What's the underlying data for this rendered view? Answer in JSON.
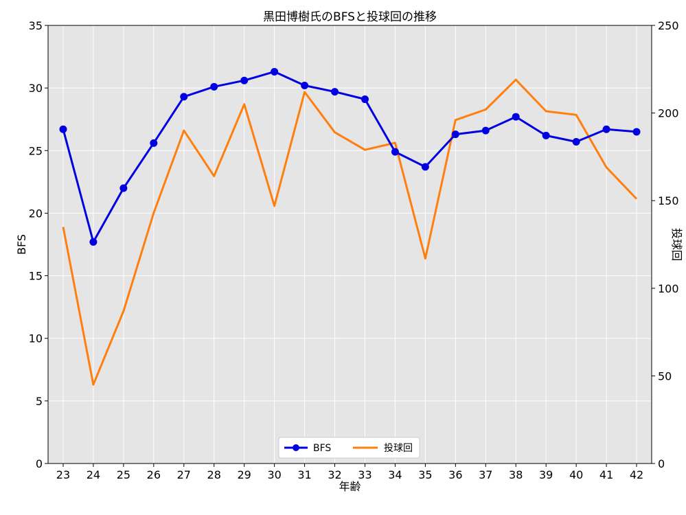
{
  "chart_data": {
    "type": "line",
    "title": "黒田博樹氏のBFSと投球回の推移",
    "xlabel": "年齢",
    "ylabel": "BFS",
    "y2label": "投球回",
    "categories": [
      "23",
      "24",
      "25",
      "26",
      "27",
      "28",
      "29",
      "30",
      "31",
      "32",
      "33",
      "34",
      "35",
      "36",
      "37",
      "38",
      "39",
      "40",
      "41",
      "42"
    ],
    "series": [
      {
        "name": "BFS",
        "axis": "left",
        "color": "#0000e0",
        "marker": "circle",
        "values": [
          26.7,
          17.7,
          22.0,
          25.6,
          29.3,
          30.1,
          30.6,
          31.3,
          30.2,
          29.7,
          29.1,
          24.9,
          23.7,
          26.3,
          26.6,
          27.7,
          26.2,
          25.7,
          26.7,
          26.5
        ]
      },
      {
        "name": "投球回",
        "axis": "right",
        "color": "#ff7f0e",
        "marker": "none",
        "values": [
          135,
          45,
          87,
          143,
          190,
          164,
          205,
          147,
          212,
          189,
          179,
          183,
          117,
          196,
          202,
          219,
          201,
          199,
          169,
          151
        ]
      }
    ],
    "ylim": [
      0,
      35
    ],
    "yticks": [
      0,
      5,
      10,
      15,
      20,
      25,
      30,
      35
    ],
    "y2lim": [
      0,
      250
    ],
    "y2ticks": [
      0,
      50,
      100,
      150,
      200,
      250
    ],
    "grid": true,
    "legend": "bottom-center",
    "background": "#e5e5e5"
  }
}
